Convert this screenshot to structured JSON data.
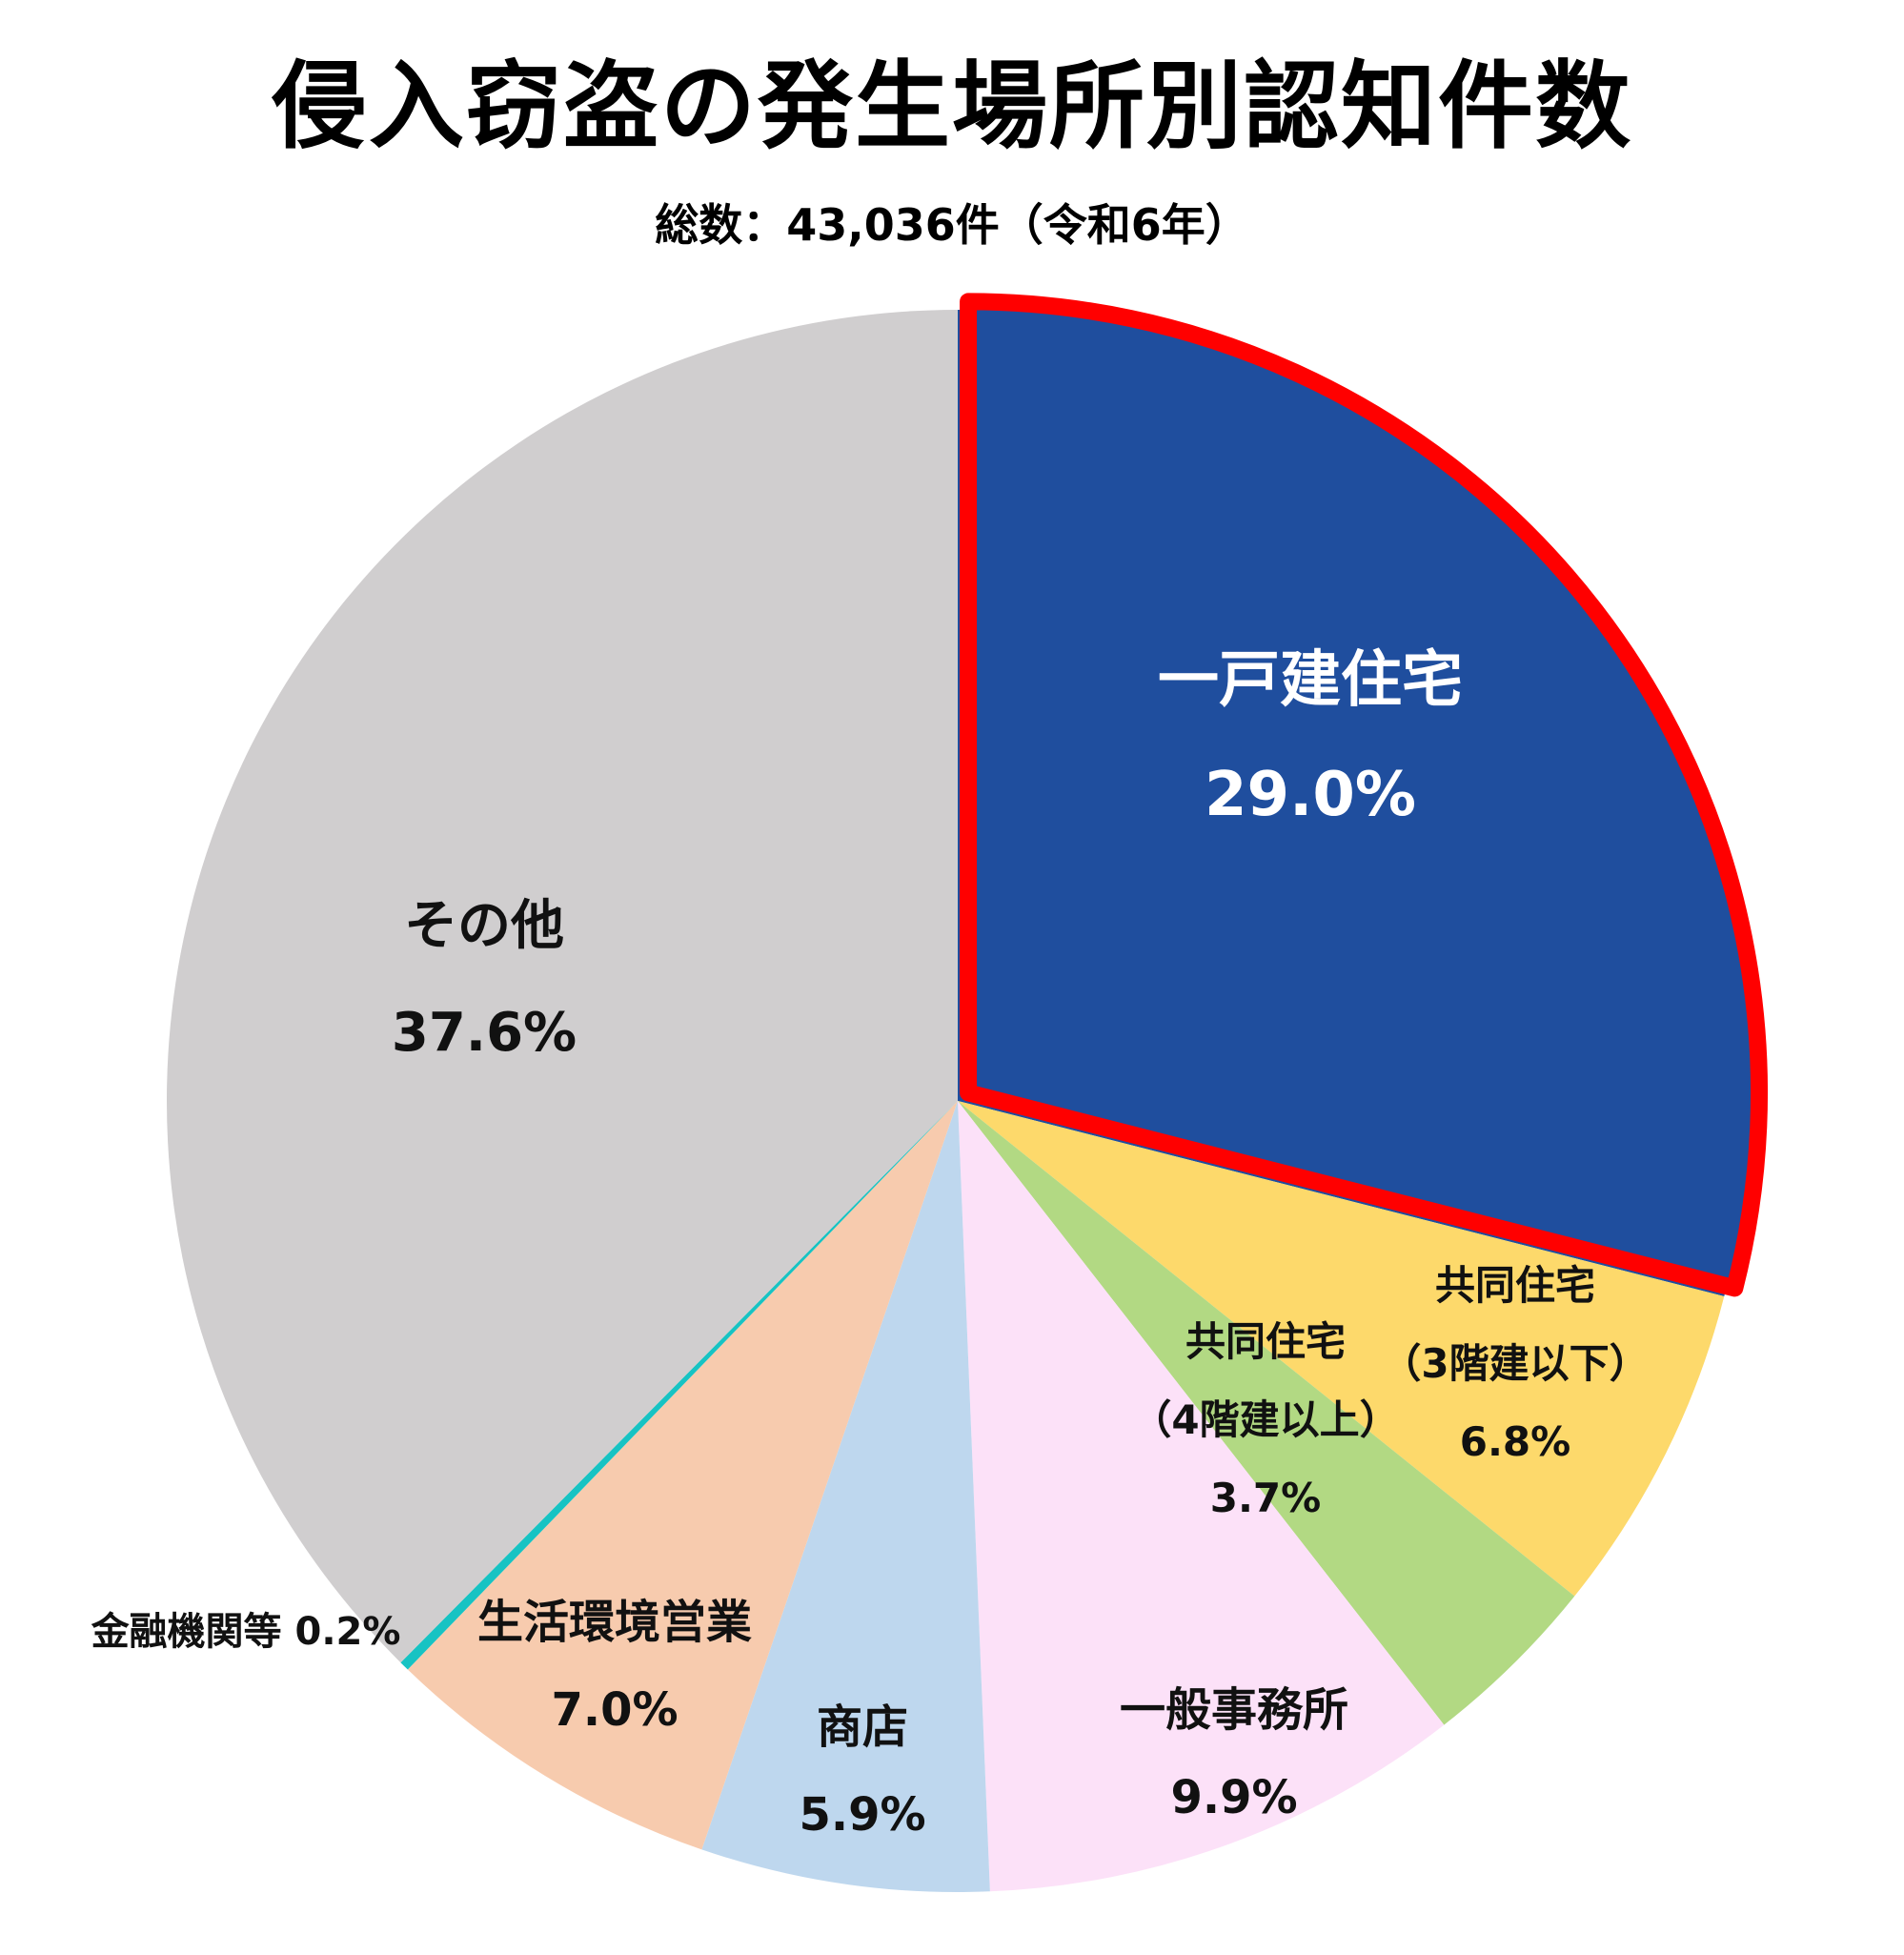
{
  "chart_data": {
    "type": "pie",
    "title": "侵入窃盗の発生場所別認知件数",
    "subtitle": "総数：43,036件（令和6年）",
    "slices": [
      {
        "label_lines": [
          "一戸建住宅"
        ],
        "value": 29.0,
        "value_label": "29.0%",
        "color": "#1f4e9e",
        "label_color": "#ffffff",
        "highlighted": true,
        "highlight_color": "#ff0000"
      },
      {
        "label_lines": [
          "共同住宅",
          "（3階建以下）"
        ],
        "value": 6.8,
        "value_label": "6.8%",
        "color": "#fdd96b",
        "label_color": "#111111"
      },
      {
        "label_lines": [
          "共同住宅",
          "（4階建以上）"
        ],
        "value": 3.7,
        "value_label": "3.7%",
        "color": "#b2d983",
        "label_color": "#111111"
      },
      {
        "label_lines": [
          "一般事務所"
        ],
        "value": 9.9,
        "value_label": "9.9%",
        "color": "#fce1f8",
        "label_color": "#111111"
      },
      {
        "label_lines": [
          "商店"
        ],
        "value": 5.9,
        "value_label": "5.9%",
        "color": "#bed7ee",
        "label_color": "#111111"
      },
      {
        "label_lines": [
          "生活環境営業"
        ],
        "value": 7.0,
        "value_label": "7.0%",
        "color": "#f7cbae",
        "label_color": "#111111"
      },
      {
        "label_lines": [
          "金融機関等 0.2%"
        ],
        "value": 0.2,
        "value_label": "",
        "color": "#17c3c3",
        "label_color": "#111111"
      },
      {
        "label_lines": [
          "その他"
        ],
        "value": 37.6,
        "value_label": "37.6%",
        "color": "#d0cecf",
        "label_color": "#111111"
      }
    ]
  }
}
